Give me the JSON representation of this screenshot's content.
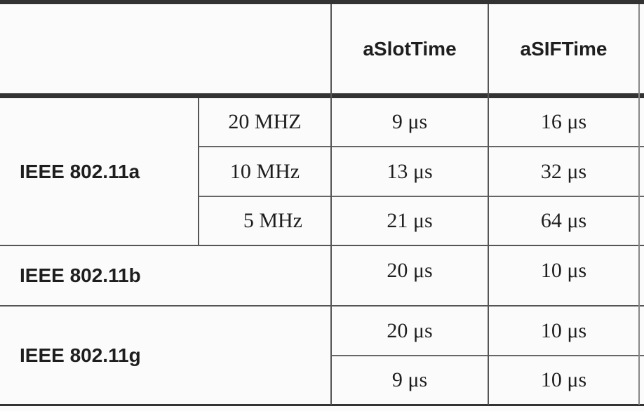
{
  "table": {
    "header": {
      "col_slot": "aSlotTime",
      "col_sif": "aSIFTime"
    },
    "rows": [
      {
        "group": "IEEE 802.11a",
        "bandwidth": "20 MHZ",
        "slot": "9 μs",
        "sif": "16 μs"
      },
      {
        "bandwidth": "10 MHz",
        "slot": "13 μs",
        "sif": "32 μs"
      },
      {
        "bandwidth": "5 MHz",
        "slot": "21 μs",
        "sif": "64 μs"
      },
      {
        "group": "IEEE 802.11b",
        "slot": "20 μs",
        "sif": "10 μs"
      },
      {
        "group": "IEEE 802.11g",
        "slot": "20 μs",
        "sif": "10 μs"
      },
      {
        "slot": "9 μs",
        "sif": "10 μs"
      }
    ]
  }
}
